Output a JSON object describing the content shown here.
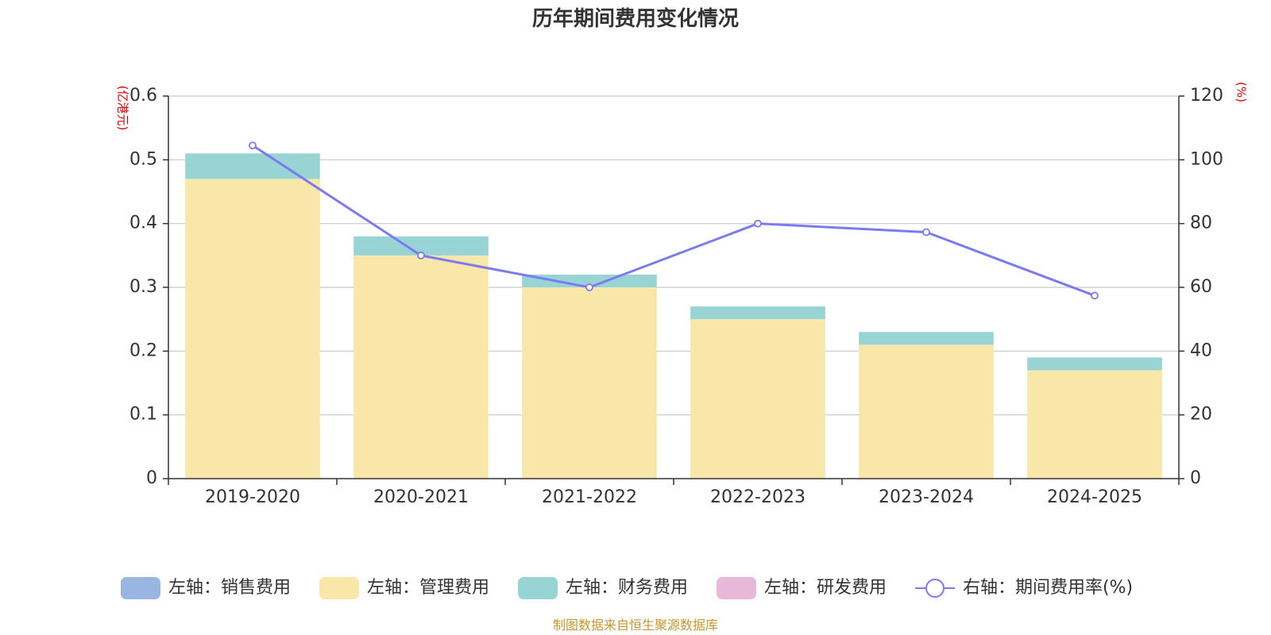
{
  "chart_data": {
    "type": "bar",
    "title": "历年期间费用变化情况",
    "categories": [
      "2019-2020",
      "2020-2021",
      "2021-2022",
      "2022-2023",
      "2023-2024",
      "2024-2025"
    ],
    "y_left_unit": "(亿港元)",
    "y_right_unit": "(%)",
    "y_left_ticks": [
      "0",
      "0.1",
      "0.2",
      "0.3",
      "0.4",
      "0.5",
      "0.6"
    ],
    "y_right_ticks": [
      "0",
      "20",
      "40",
      "60",
      "80",
      "100",
      "120"
    ],
    "ylim_left": [
      0,
      0.6
    ],
    "ylim_right": [
      0,
      120
    ],
    "stacked": true,
    "grid": true,
    "legend_position": "bottom",
    "series": [
      {
        "name": "左轴：销售费用",
        "axis": "left",
        "kind": "bar",
        "color": "#9bb5e3",
        "values": [
          0,
          0,
          0,
          0,
          0,
          0
        ]
      },
      {
        "name": "左轴：管理费用",
        "axis": "left",
        "kind": "bar",
        "color": "#f8e7a8",
        "values": [
          0.47,
          0.35,
          0.3,
          0.25,
          0.21,
          0.17
        ]
      },
      {
        "name": "左轴：财务费用",
        "axis": "left",
        "kind": "bar",
        "color": "#98d4d4",
        "values": [
          0.04,
          0.03,
          0.02,
          0.02,
          0.02,
          0.02
        ]
      },
      {
        "name": "左轴：研发费用",
        "axis": "left",
        "kind": "bar",
        "color": "#e8b8d8",
        "values": [
          0,
          0,
          0,
          0,
          0,
          0
        ]
      },
      {
        "name": "右轴：期间费用率(%)",
        "axis": "right",
        "kind": "line",
        "color": "#7b7bef",
        "values": [
          104.5,
          70.0,
          60.0,
          80.0,
          77.3,
          57.4
        ]
      }
    ],
    "source": "制图数据来自恒生聚源数据库"
  }
}
